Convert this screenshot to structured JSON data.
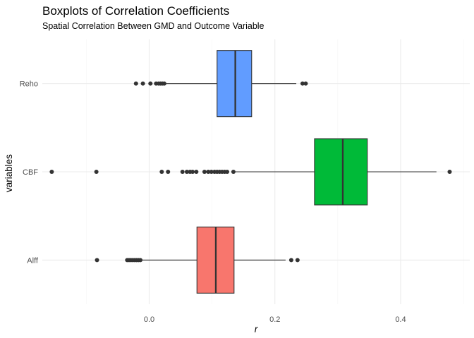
{
  "chart_data": {
    "type": "boxplot",
    "title": "Boxplots of Correlation Coefficients",
    "subtitle": "Spatial Correlation Between GMD and Outcome Variable",
    "xlabel": "r",
    "ylabel": "variables",
    "xlim": [
      -0.17,
      0.51
    ],
    "x_ticks": [
      0.0,
      0.2,
      0.4
    ],
    "x_tick_labels": [
      "0.0",
      "0.2",
      "0.4"
    ],
    "x_minor_ticks": [
      -0.1,
      0.1,
      0.3,
      0.5
    ],
    "grid": true,
    "legend": "none",
    "categories": [
      "Alff",
      "CBF",
      "Reho"
    ],
    "series": [
      {
        "category": "Alff",
        "color": "#F8766D",
        "q1": 0.076,
        "median": 0.106,
        "q3": 0.135,
        "whisker_low": -0.013,
        "whisker_high": 0.217,
        "outliers": [
          -0.083,
          -0.035,
          -0.032,
          -0.029,
          -0.026,
          -0.023,
          -0.02,
          -0.017,
          -0.014,
          0.226,
          0.236
        ]
      },
      {
        "category": "CBF",
        "color": "#00BA38",
        "q1": 0.263,
        "median": 0.308,
        "q3": 0.347,
        "whisker_low": 0.137,
        "whisker_high": 0.457,
        "outliers": [
          -0.155,
          -0.084,
          0.02,
          0.03,
          0.053,
          0.06,
          0.065,
          0.069,
          0.075,
          0.088,
          0.094,
          0.099,
          0.104,
          0.108,
          0.112,
          0.116,
          0.12,
          0.124,
          0.134,
          0.478
        ]
      },
      {
        "category": "Reho",
        "color": "#619CFF",
        "q1": 0.108,
        "median": 0.137,
        "q3": 0.163,
        "whisker_low": 0.027,
        "whisker_high": 0.234,
        "outliers": [
          -0.021,
          -0.01,
          0.002,
          0.011,
          0.015,
          0.018,
          0.021,
          0.024,
          0.244,
          0.249
        ]
      }
    ]
  }
}
